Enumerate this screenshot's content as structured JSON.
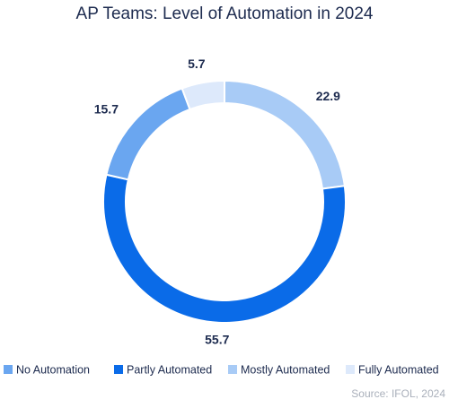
{
  "chart_data": {
    "type": "donut",
    "title": "AP Teams: Level of Automation in 2024",
    "categories": [
      "No Automation",
      "Partly Automated",
      "Mostly Automated",
      "Fully Automated"
    ],
    "values": [
      15.7,
      55.7,
      22.9,
      5.7
    ],
    "colors": [
      "#6aa6f0",
      "#0a6be8",
      "#a8cbf6",
      "#dde9fb"
    ],
    "source": "Source: IFOL, 2024"
  }
}
